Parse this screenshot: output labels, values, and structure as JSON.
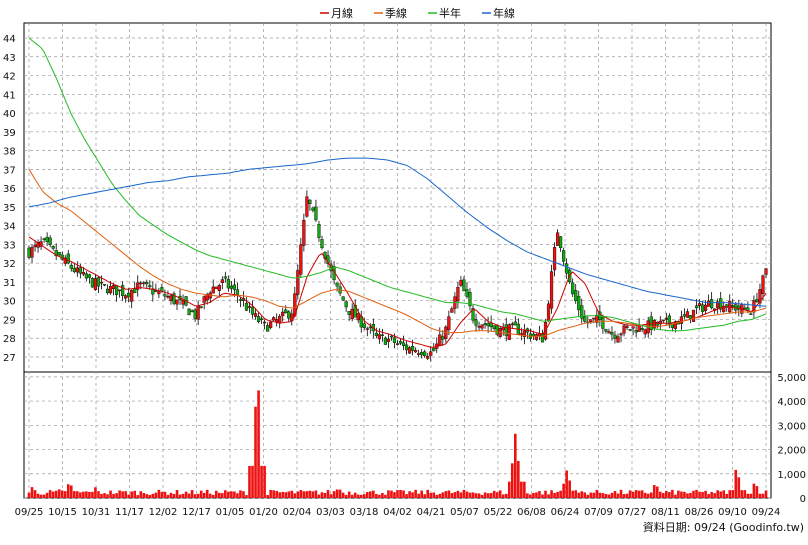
{
  "chart_data": {
    "type": "candlestick",
    "legend": [
      {
        "label": "月線",
        "color": "#cc0000"
      },
      {
        "label": "季線",
        "color": "#e06010"
      },
      {
        "label": "半年",
        "color": "#22bb22"
      },
      {
        "label": "年線",
        "color": "#1a66cc"
      }
    ],
    "price_axis": {
      "ticks": [
        "27",
        "28",
        "29",
        "30",
        "31",
        "32",
        "33",
        "34",
        "35",
        "36",
        "37",
        "38",
        "39",
        "40",
        "41",
        "42",
        "43",
        "44"
      ],
      "range": [
        26.2,
        44.8
      ]
    },
    "volume_axis": {
      "ticks": [
        "0",
        "1,000",
        "2,000",
        "3,000",
        "4,000",
        "5,000"
      ],
      "range": [
        0,
        5200
      ]
    },
    "x_labels": [
      "09/25",
      "10/15",
      "10/31",
      "11/17",
      "12/02",
      "12/17",
      "01/05",
      "01/20",
      "02/04",
      "03/03",
      "03/18",
      "04/02",
      "04/21",
      "05/07",
      "05/22",
      "06/08",
      "06/24",
      "07/09",
      "07/27",
      "08/11",
      "08/26",
      "09/10",
      "09/24"
    ],
    "source": "資料日期: 09/24  (Goodinfo.tw)",
    "anchors": {
      "close": [
        32.6,
        33.1,
        32.4,
        31.8,
        31.2,
        30.8,
        30.6,
        30.4,
        30.8,
        30.5,
        30.2,
        29.8,
        29.2,
        30.6,
        31.0,
        30.3,
        29.3,
        28.6,
        29.0,
        29.5,
        35.5,
        33.2,
        30.8,
        29.5,
        28.8,
        28.0,
        27.9,
        27.5,
        27.4,
        27.2,
        28.5,
        31.0,
        29.0,
        28.7,
        28.4,
        28.5,
        28.2,
        28.0,
        33.8,
        30.5,
        28.8,
        29.0,
        28.2,
        28.5,
        28.6,
        28.7,
        28.8,
        29.0,
        29.5,
        29.9,
        29.8,
        29.6,
        29.5,
        31.5
      ],
      "ma_month": [
        33.4,
        32.9,
        32.4,
        32.1,
        31.7,
        31.3,
        30.9,
        30.6,
        30.7,
        30.6,
        30.4,
        30.1,
        29.7,
        29.9,
        30.4,
        30.3,
        29.8,
        29.0,
        28.8,
        28.9,
        31.3,
        32.6,
        31.5,
        30.3,
        29.0,
        28.4,
        28.2,
        27.9,
        27.7,
        27.5,
        27.7,
        28.8,
        29.6,
        28.9,
        28.6,
        28.5,
        28.4,
        28.2,
        29.6,
        31.6,
        30.9,
        29.3,
        28.9,
        28.7,
        28.7,
        28.8,
        28.8,
        28.9,
        29.1,
        29.4,
        29.7,
        29.6,
        29.4,
        30.4
      ],
      "ma_quarter": [
        37.0,
        35.8,
        35.2,
        34.8,
        34.2,
        33.6,
        33.0,
        32.4,
        31.8,
        31.3,
        30.9,
        30.6,
        30.4,
        30.3,
        30.2,
        30.3,
        30.2,
        30.0,
        29.7,
        29.6,
        30.0,
        30.4,
        30.6,
        30.5,
        30.2,
        29.9,
        29.6,
        29.3,
        28.9,
        28.5,
        28.3,
        28.3,
        28.4,
        28.4,
        28.3,
        28.2,
        28.1,
        28.1,
        28.4,
        28.6,
        28.8,
        28.9,
        28.9,
        28.8,
        28.7,
        28.6,
        28.7,
        28.9,
        29.1,
        29.2,
        29.3,
        29.4,
        29.4,
        29.6
      ],
      "ma_half": [
        44.0,
        43.4,
        41.8,
        40.0,
        38.6,
        37.4,
        36.2,
        35.3,
        34.5,
        34.0,
        33.5,
        33.1,
        32.7,
        32.4,
        32.2,
        32.0,
        31.8,
        31.6,
        31.4,
        31.2,
        31.3,
        31.5,
        31.8,
        31.6,
        31.3,
        31.0,
        30.7,
        30.5,
        30.3,
        30.1,
        29.9,
        29.9,
        29.8,
        29.6,
        29.4,
        29.3,
        29.1,
        28.9,
        29.0,
        29.1,
        29.2,
        29.2,
        29.1,
        28.9,
        28.7,
        28.5,
        28.4,
        28.4,
        28.5,
        28.6,
        28.7,
        28.9,
        29.0,
        29.3
      ],
      "ma_year": [
        35.0,
        35.2,
        35.5,
        35.7,
        35.9,
        36.1,
        36.3,
        36.4,
        36.6,
        36.7,
        36.8,
        37.0,
        37.1,
        37.2,
        37.3,
        37.5,
        37.6,
        37.6,
        37.5,
        37.2,
        36.5,
        35.6,
        34.7,
        33.9,
        33.2,
        32.6,
        32.2,
        31.8,
        31.4,
        31.1,
        30.8,
        30.5,
        30.3,
        30.1,
        29.9,
        29.9,
        29.8,
        29.7
      ],
      "volume_spikes": {
        "0.005": 500,
        "0.04": 400,
        "0.055": 700,
        "0.09": 450,
        "0.31": 5300,
        "0.42": 450,
        "0.66": 2700,
        "0.73": 1200,
        "0.85": 650,
        "0.96": 1300,
        "0.985": 700
      }
    }
  }
}
